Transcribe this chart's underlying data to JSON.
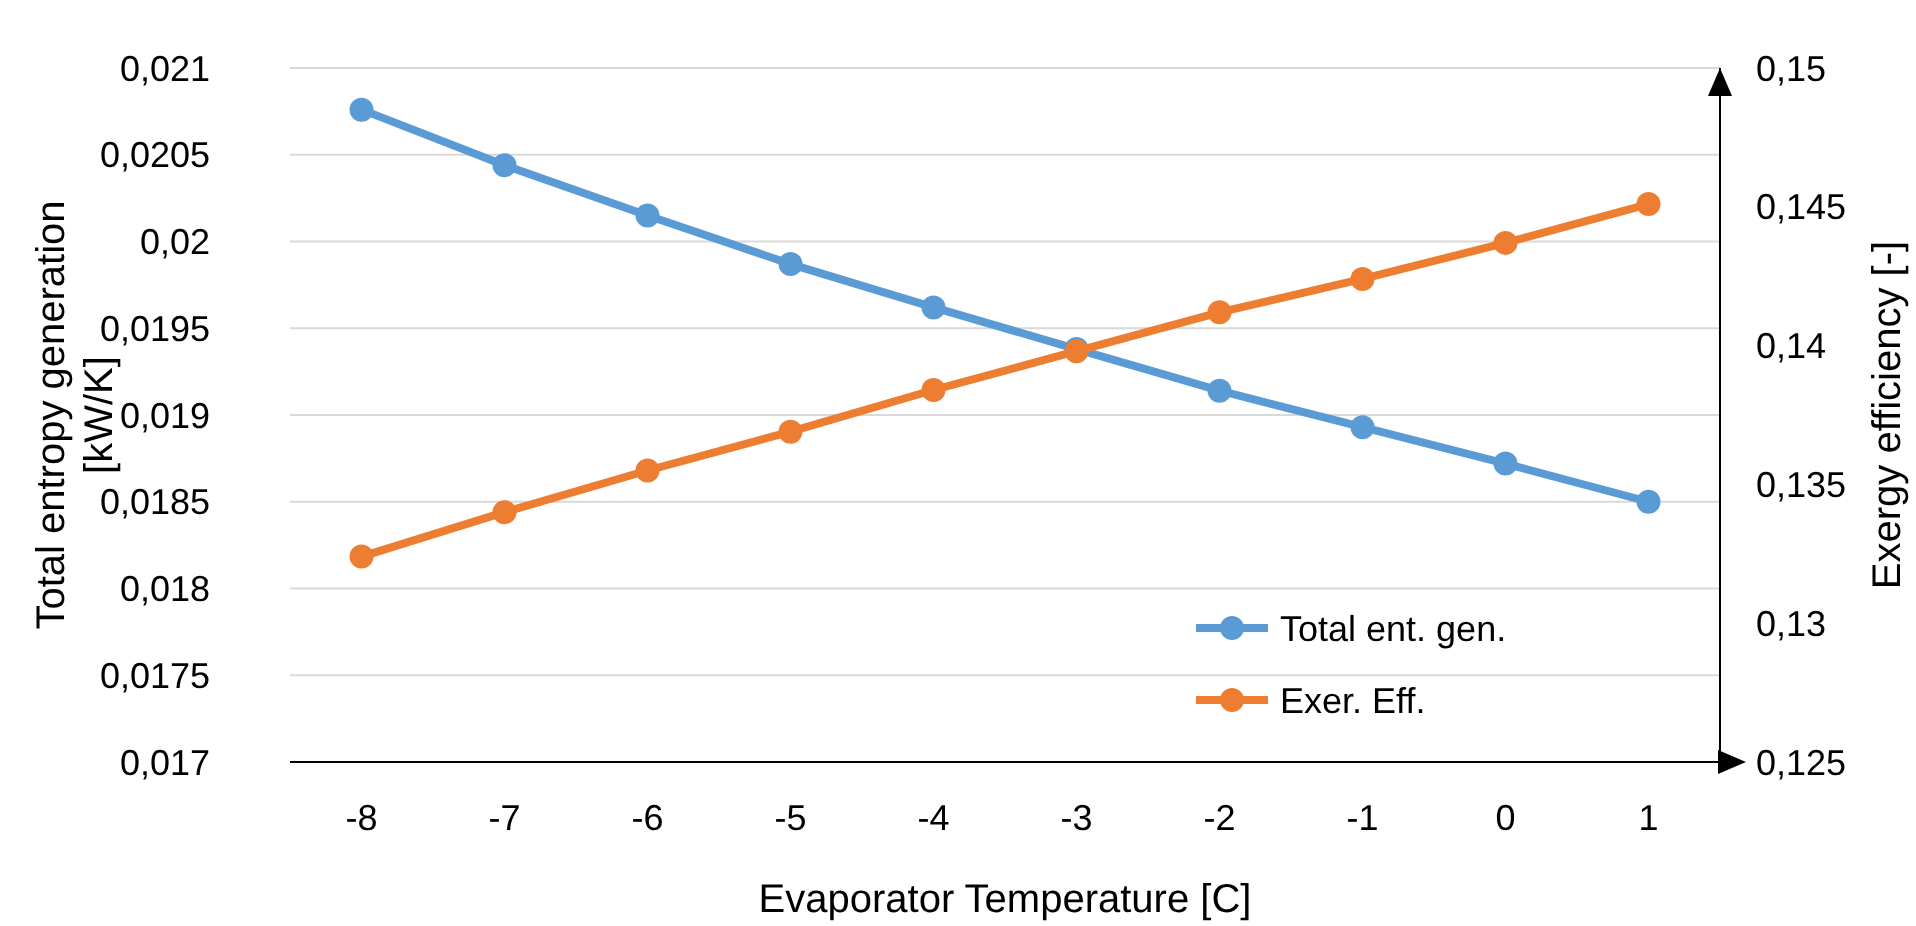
{
  "chart_data": {
    "type": "line",
    "xlabel": "Evaporator Temperature [C]",
    "ylabel": "Total entropy generation [kW/K]",
    "y2label": "Exergy efficiency [-]",
    "categories": [
      "-8",
      "-7",
      "-6",
      "-5",
      "-4",
      "-3",
      "-2",
      "-1",
      "0",
      "1"
    ],
    "series": [
      {
        "name": "Total ent. gen.",
        "color": "#5b9bd5",
        "values": [
          0.02076,
          0.02044,
          0.02015,
          0.01987,
          0.01962,
          0.01938,
          0.01914,
          0.01893,
          0.01872,
          0.0185
        ]
      },
      {
        "name": "Exer. Eff.",
        "color": "#ed7d31",
        "axis": "y2",
        "values": [
          0.1324,
          0.134,
          0.1355,
          0.1369,
          0.1384,
          0.1398,
          0.1412,
          0.1424,
          0.1437,
          0.1451
        ]
      }
    ],
    "ylim": [
      0.017,
      0.021
    ],
    "yticks": [
      {
        "value": 0.017,
        "label": "0,017"
      },
      {
        "value": 0.0175,
        "label": "0,0175"
      },
      {
        "value": 0.018,
        "label": "0,018"
      },
      {
        "value": 0.0185,
        "label": "0,0185"
      },
      {
        "value": 0.019,
        "label": "0,019"
      },
      {
        "value": 0.0195,
        "label": "0,0195"
      },
      {
        "value": 0.02,
        "label": "0,02"
      },
      {
        "value": 0.0205,
        "label": "0,0205"
      },
      {
        "value": 0.021,
        "label": "0,021"
      }
    ],
    "y2lim": [
      0.125,
      0.15
    ],
    "y2ticks": [
      {
        "value": 0.125,
        "label": "0,125"
      },
      {
        "value": 0.13,
        "label": "0,13"
      },
      {
        "value": 0.135,
        "label": "0,135"
      },
      {
        "value": 0.14,
        "label": "0,14"
      },
      {
        "value": 0.145,
        "label": "0,145"
      },
      {
        "value": 0.15,
        "label": "0,15"
      }
    ],
    "grid": "y",
    "legend": "bottom right",
    "marker": "circle",
    "line_style": "solid"
  }
}
